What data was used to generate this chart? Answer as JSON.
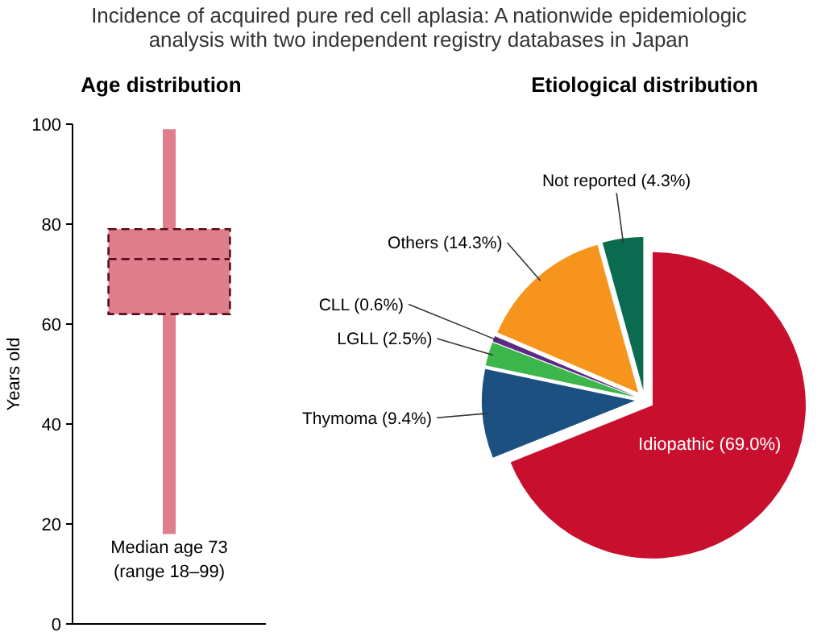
{
  "chart_data": [
    {
      "type": "box",
      "title": "Incidence of acquired pure red cell aplasia: A nationwide epidemiologic analysis with two independent registry databases in Japan",
      "subtitle": "Age distribution",
      "ylabel": "Years old",
      "categories": [
        null
      ],
      "color": "#df7f8e",
      "boxes": [
        {
          "low": 18,
          "q1": 62,
          "median": 73,
          "q3": 79,
          "high": 99
        }
      ],
      "ylim": [
        0,
        100
      ],
      "yticks": [
        0,
        20,
        40,
        60,
        80,
        100
      ],
      "grid": false,
      "annotations": [
        "Median age 73",
        "(range 18–99)"
      ]
    },
    {
      "type": "pie",
      "title": "Etiological distribution",
      "categories": [
        "Idiopathic",
        "Thymoma",
        "LGLL",
        "CLL",
        "Others",
        "Not reported"
      ],
      "values": [
        69.0,
        9.4,
        2.5,
        0.6,
        14.3,
        4.3
      ],
      "colors": [
        "#c8102e",
        "#1b5080",
        "#3cb54a",
        "#5b2a86",
        "#f7941d",
        "#0b6b50"
      ],
      "value_labels": [
        "(69.0%)",
        "(9.4%)",
        "(2.5%)",
        "(0.6%)",
        "(14.3%)",
        "(4.3%)"
      ]
    }
  ]
}
